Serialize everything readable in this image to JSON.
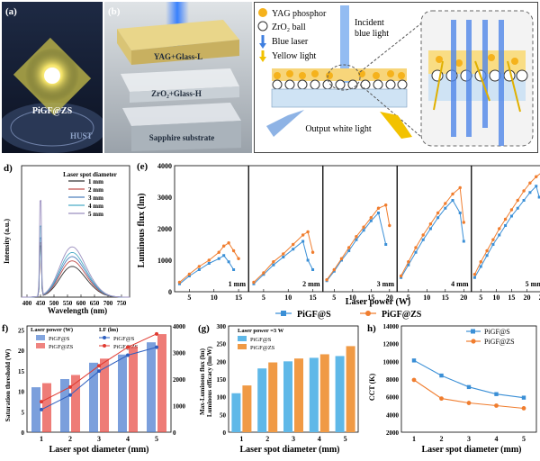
{
  "panel_a": {
    "letter": "(a)",
    "caption": "PiGF@ZS",
    "logo_text": "HUST"
  },
  "panel_b": {
    "letter": "(b)",
    "layer1": "YAG+Glass-L",
    "layer2": "ZrO₂+Glass-H",
    "layer3": "Sapphire substrate"
  },
  "panel_c": {
    "legend": [
      "YAG phosphor",
      "ZrO₂ ball",
      "Blue laser",
      "Yellow light"
    ],
    "incident": [
      "Incident",
      "blue light"
    ],
    "output": "Output white light",
    "colors": {
      "yag": "#f5b21c",
      "zro2": "#ffffff",
      "blue": "#3f7fe0",
      "yellow": "#f2c200",
      "substrate": "#cfe3f4"
    }
  },
  "panel_d": {
    "letter": "d)",
    "chart_data": {
      "type": "line",
      "legend_title": "Laser spot diameter",
      "xlabel": "Wavelength (nm)",
      "ylabel": "Intensity (a.u.)",
      "xlim": [
        380,
        780
      ],
      "xticks": [
        "400",
        "450",
        "500",
        "550",
        "600",
        "650",
        "700",
        "750"
      ],
      "series": [
        {
          "name": "1 mm",
          "color": "#333333",
          "peak_blue": 0.52,
          "peak_yellow": 0.22
        },
        {
          "name": "2 mm",
          "color": "#c0504d",
          "peak_blue": 0.55,
          "peak_yellow": 0.26
        },
        {
          "name": "3 mm",
          "color": "#4f81bd",
          "peak_blue": 0.6,
          "peak_yellow": 0.29
        },
        {
          "name": "4 mm",
          "color": "#4bacc6",
          "peak_blue": 0.72,
          "peak_yellow": 0.32
        },
        {
          "name": "5 mm",
          "color": "#9b8fbf",
          "peak_blue": 0.98,
          "peak_yellow": 0.36
        }
      ]
    }
  },
  "panel_e": {
    "letter": "(e)",
    "chart_data": {
      "type": "line",
      "ylabel": "Luminous flux (lm)",
      "xlabel": "Laser power (W)",
      "ylim": [
        0,
        4000
      ],
      "yticks": [
        "0",
        "1000",
        "2000",
        "3000",
        "4000"
      ],
      "legend": [
        {
          "name": "PiGF@S",
          "color": "#3a8fd6",
          "marker": "square"
        },
        {
          "name": "PiGF@ZS",
          "color": "#f07d2e",
          "marker": "circle"
        }
      ],
      "subplots": [
        {
          "label": "1 mm",
          "xlim": [
            2,
            17
          ],
          "xticks": [
            "5",
            "10",
            "15"
          ],
          "s": {
            "x": [
              3,
              5,
              7,
              9,
              11,
              12,
              13,
              14
            ],
            "y": [
              250,
              500,
              700,
              900,
              1050,
              1150,
              950,
              700
            ]
          },
          "zs": {
            "x": [
              3,
              5,
              7,
              9,
              11,
              12,
              13,
              14,
              15
            ],
            "y": [
              300,
              560,
              800,
              1000,
              1250,
              1450,
              1550,
              1300,
              1050
            ]
          }
        },
        {
          "label": "2 mm",
          "xlim": [
            2,
            17
          ],
          "xticks": [
            "5",
            "10",
            "15"
          ],
          "s": {
            "x": [
              3,
              5,
              7,
              9,
              11,
              13,
              14,
              15
            ],
            "y": [
              250,
              550,
              850,
              1100,
              1350,
              1600,
              1000,
              700
            ]
          },
          "zs": {
            "x": [
              3,
              5,
              7,
              9,
              11,
              13,
              14,
              15
            ],
            "y": [
              300,
              600,
              950,
              1200,
              1500,
              1800,
              1900,
              1250
            ]
          }
        },
        {
          "label": "3 mm",
          "xlim": [
            2,
            22
          ],
          "xticks": [
            "5",
            "10",
            "15",
            "20"
          ],
          "s": {
            "x": [
              3,
              5,
              7,
              9,
              11,
              13,
              15,
              17,
              19
            ],
            "y": [
              350,
              650,
              1000,
              1300,
              1650,
              1950,
              2250,
              2500,
              1500
            ]
          },
          "zs": {
            "x": [
              3,
              5,
              7,
              9,
              11,
              13,
              15,
              17,
              19,
              20
            ],
            "y": [
              380,
              700,
              1050,
              1400,
              1750,
              2050,
              2350,
              2650,
              2750,
              2100
            ]
          }
        },
        {
          "label": "4 mm",
          "xlim": [
            2,
            22
          ],
          "xticks": [
            "5",
            "10",
            "15",
            "20"
          ],
          "s": {
            "x": [
              3,
              5,
              7,
              9,
              11,
              13,
              15,
              17,
              19,
              20
            ],
            "y": [
              450,
              850,
              1250,
              1650,
              2000,
              2350,
              2650,
              2900,
              2500,
              1600
            ]
          },
          "zs": {
            "x": [
              3,
              5,
              7,
              9,
              11,
              13,
              15,
              17,
              19,
              20
            ],
            "y": [
              500,
              950,
              1400,
              1800,
              2150,
              2500,
              2800,
              3100,
              3300,
              2200
            ]
          }
        },
        {
          "label": "5 mm",
          "xlim": [
            2,
            26
          ],
          "xticks": [
            "5",
            "10",
            "15",
            "20",
            "25"
          ],
          "s": {
            "x": [
              3,
              5,
              7,
              9,
              11,
              13,
              15,
              17,
              19,
              21,
              23,
              24
            ],
            "y": [
              450,
              800,
              1150,
              1500,
              1800,
              2100,
              2400,
              2650,
              2900,
              3150,
              3350,
              3000
            ]
          },
          "zs": {
            "x": [
              3,
              5,
              7,
              9,
              11,
              13,
              15,
              17,
              19,
              21,
              23,
              25,
              26
            ],
            "y": [
              550,
              950,
              1300,
              1650,
              2000,
              2300,
              2600,
              2900,
              3200,
              3450,
              3650,
              3800,
              2500
            ]
          }
        }
      ]
    }
  },
  "panel_f": {
    "letter": "f)",
    "chart_data": {
      "type": "bar",
      "legend_left_title": "Laser power (W)",
      "legend_right_title": "LF (lm)",
      "legend_left": [
        "PiGF@S",
        "PiGF@ZS"
      ],
      "legend_right": [
        "PiGF@S",
        "PiGF@ZS"
      ],
      "categories": [
        "1",
        "2",
        "3",
        "4",
        "5"
      ],
      "xlabel": "Laser spot diameter (mm)",
      "ylabel_left": "Saturation threshold (W)",
      "ylabel_right": "",
      "ylim_left": [
        0,
        26
      ],
      "yticks_left": [
        "0",
        "5",
        "10",
        "15",
        "20",
        "25"
      ],
      "ylim_right": [
        0,
        4000
      ],
      "yticks_right": [
        "0",
        "1000",
        "2000",
        "3000",
        "4000"
      ],
      "bars_s": [
        11,
        13,
        17,
        19,
        22
      ],
      "bars_zs": [
        12,
        14,
        18,
        21,
        24
      ],
      "lf_s": [
        850,
        1400,
        2300,
        2900,
        3200
      ],
      "lf_zs": [
        1150,
        1700,
        2500,
        3200,
        3700
      ],
      "colors": {
        "s": "#4f7fd0",
        "zs": "#e8504a"
      }
    }
  },
  "panel_g": {
    "letter": "(g)",
    "chart_data": {
      "type": "bar",
      "legend_title": "Laser power =3 W",
      "legend": [
        "PiGF@S",
        "PiGF@ZS"
      ],
      "categories": [
        "1",
        "2",
        "3",
        "4",
        "5"
      ],
      "xlabel": "Laser spot diameter (mm)",
      "ylabel": "Max-Luminous flux (lm)",
      "ylabel2": "Luminous efficacy (lm/W)",
      "ylim": [
        0,
        300
      ],
      "yticks": [
        "0",
        "50",
        "100",
        "150",
        "200",
        "250",
        "300"
      ],
      "s": [
        110,
        180,
        200,
        210,
        215
      ],
      "zs": [
        132,
        197,
        208,
        220,
        243
      ],
      "colors": {
        "s": "#5fb8e8",
        "zs": "#f09a45"
      }
    }
  },
  "panel_h": {
    "letter": "h)",
    "chart_data": {
      "type": "line",
      "categories": [
        "1",
        "2",
        "3",
        "4",
        "5"
      ],
      "xlabel": "Laser spot diameter (mm)",
      "ylabel": "CCT (K)",
      "ylim": [
        2000,
        14000
      ],
      "yticks": [
        "2000",
        "4000",
        "6000",
        "8000",
        "10000",
        "12000",
        "14000"
      ],
      "series": [
        {
          "name": "PiGF@S",
          "color": "#3a8fd6",
          "values": [
            10100,
            8400,
            7100,
            6300,
            5900
          ]
        },
        {
          "name": "PiGF@ZS",
          "color": "#f07d2e",
          "values": [
            7900,
            5800,
            5300,
            5000,
            4700
          ]
        }
      ]
    }
  }
}
